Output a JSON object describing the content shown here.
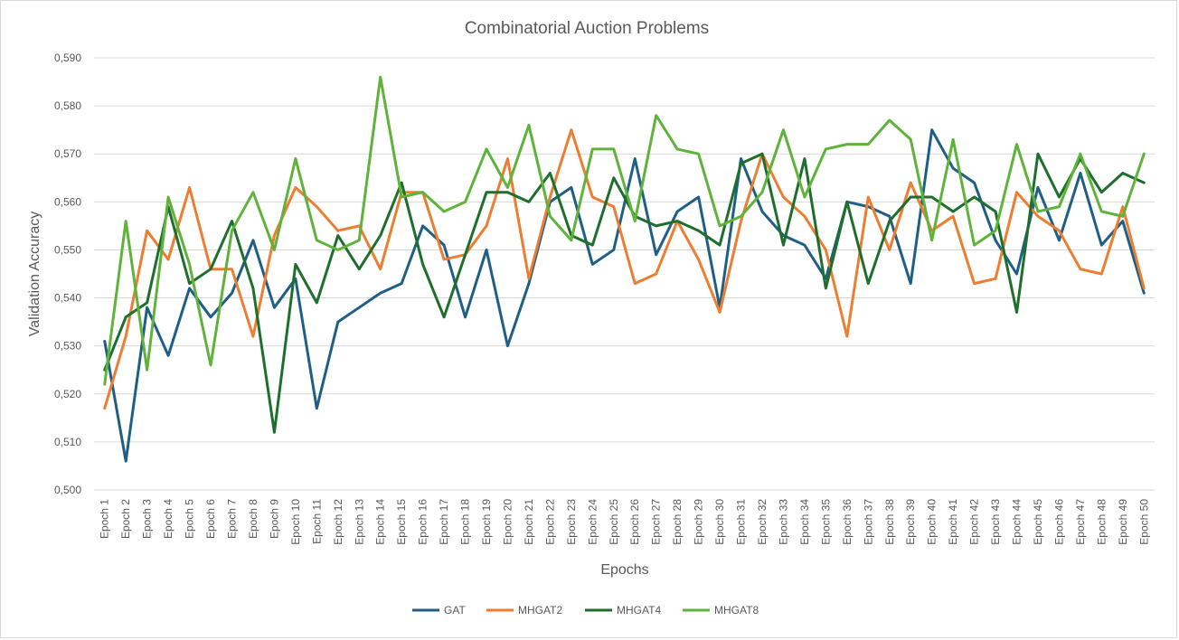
{
  "chart_data": {
    "type": "line",
    "title": "Combinatorial Auction Problems",
    "xlabel": "Epochs",
    "ylabel": "Validation Accuracy",
    "ylim": [
      0.5,
      0.59
    ],
    "y_ticks": [
      "0,500",
      "0,510",
      "0,520",
      "0,530",
      "0,540",
      "0,550",
      "0,560",
      "0,570",
      "0,580",
      "0,590"
    ],
    "y_tick_values": [
      0.5,
      0.51,
      0.52,
      0.53,
      0.54,
      0.55,
      0.56,
      0.57,
      0.58,
      0.59
    ],
    "grid": true,
    "legend_position": "bottom",
    "categories": [
      "Epoch 1",
      "Epoch 2",
      "Epoch 3",
      "Epoch 4",
      "Epoch 5",
      "Epoch 6",
      "Epoch 7",
      "Epoch 8",
      "Epoch 9",
      "Epoch 10",
      "Epoch 11",
      "Epoch 12",
      "Epoch 13",
      "Epoch 14",
      "Epoch 15",
      "Epoch 16",
      "Epoch 17",
      "Epoch 18",
      "Epoch 19",
      "Epoch 20",
      "Epoch 21",
      "Epoch 22",
      "Epoch 23",
      "Epoch 24",
      "Epoch 25",
      "Epoch 26",
      "Epoch 27",
      "Epoch 28",
      "Epoch 29",
      "Epoch 30",
      "Epoch 31",
      "Epoch 32",
      "Epoch 33",
      "Epoch 34",
      "Epoch 35",
      "Epoch 36",
      "Epoch 37",
      "Epoch 38",
      "Epoch 39",
      "Epoch 40",
      "Epoch 41",
      "Epoch 42",
      "Epoch 43",
      "Epoch 44",
      "Epoch 45",
      "Epoch 46",
      "Epoch 47",
      "Epoch 48",
      "Epoch 49",
      "Epoch 50"
    ],
    "series": [
      {
        "name": "GAT",
        "color": "#1f5f86",
        "values": [
          0.531,
          0.506,
          0.538,
          0.528,
          0.542,
          0.536,
          0.541,
          0.552,
          0.538,
          0.544,
          0.517,
          0.535,
          0.538,
          0.541,
          0.543,
          0.555,
          0.551,
          0.536,
          0.55,
          0.53,
          0.543,
          0.56,
          0.563,
          0.547,
          0.55,
          0.569,
          0.549,
          0.558,
          0.561,
          0.538,
          0.569,
          0.558,
          0.553,
          0.551,
          0.544,
          0.56,
          0.559,
          0.557,
          0.543,
          0.575,
          0.567,
          0.564,
          0.552,
          0.545,
          0.563,
          0.552,
          0.566,
          0.551,
          0.556,
          0.541
        ]
      },
      {
        "name": "MHGAT2",
        "color": "#ed7d31",
        "values": [
          0.517,
          0.532,
          0.554,
          0.548,
          0.563,
          0.546,
          0.546,
          0.532,
          0.553,
          0.563,
          0.559,
          0.554,
          0.555,
          0.546,
          0.562,
          0.562,
          0.548,
          0.549,
          0.555,
          0.569,
          0.544,
          0.561,
          0.575,
          0.561,
          0.559,
          0.543,
          0.545,
          0.556,
          0.548,
          0.537,
          0.556,
          0.57,
          0.561,
          0.557,
          0.55,
          0.532,
          0.561,
          0.55,
          0.564,
          0.554,
          0.557,
          0.543,
          0.544,
          0.562,
          0.557,
          0.554,
          0.546,
          0.545,
          0.559,
          0.542
        ]
      },
      {
        "name": "MHGAT4",
        "color": "#1e6f2d",
        "values": [
          0.525,
          0.536,
          0.539,
          0.559,
          0.543,
          0.546,
          0.556,
          0.542,
          0.512,
          0.547,
          0.539,
          0.553,
          0.546,
          0.553,
          0.564,
          0.547,
          0.536,
          0.549,
          0.562,
          0.562,
          0.56,
          0.566,
          0.553,
          0.551,
          0.565,
          0.557,
          0.555,
          0.556,
          0.554,
          0.551,
          0.568,
          0.57,
          0.551,
          0.569,
          0.542,
          0.56,
          0.543,
          0.556,
          0.561,
          0.561,
          0.558,
          0.561,
          0.558,
          0.537,
          0.57,
          0.561,
          0.569,
          0.562,
          0.566,
          0.564
        ]
      },
      {
        "name": "MHGAT8",
        "color": "#5fb33a",
        "values": [
          0.522,
          0.556,
          0.525,
          0.561,
          0.547,
          0.526,
          0.554,
          0.562,
          0.55,
          0.569,
          0.552,
          0.55,
          0.552,
          0.586,
          0.561,
          0.562,
          0.558,
          0.56,
          0.571,
          0.563,
          0.576,
          0.557,
          0.552,
          0.571,
          0.571,
          0.556,
          0.578,
          0.571,
          0.57,
          0.555,
          0.557,
          0.562,
          0.575,
          0.561,
          0.571,
          0.572,
          0.572,
          0.577,
          0.573,
          0.552,
          0.573,
          0.551,
          0.554,
          0.572,
          0.558,
          0.559,
          0.57,
          0.558,
          0.557,
          0.57
        ]
      }
    ]
  }
}
